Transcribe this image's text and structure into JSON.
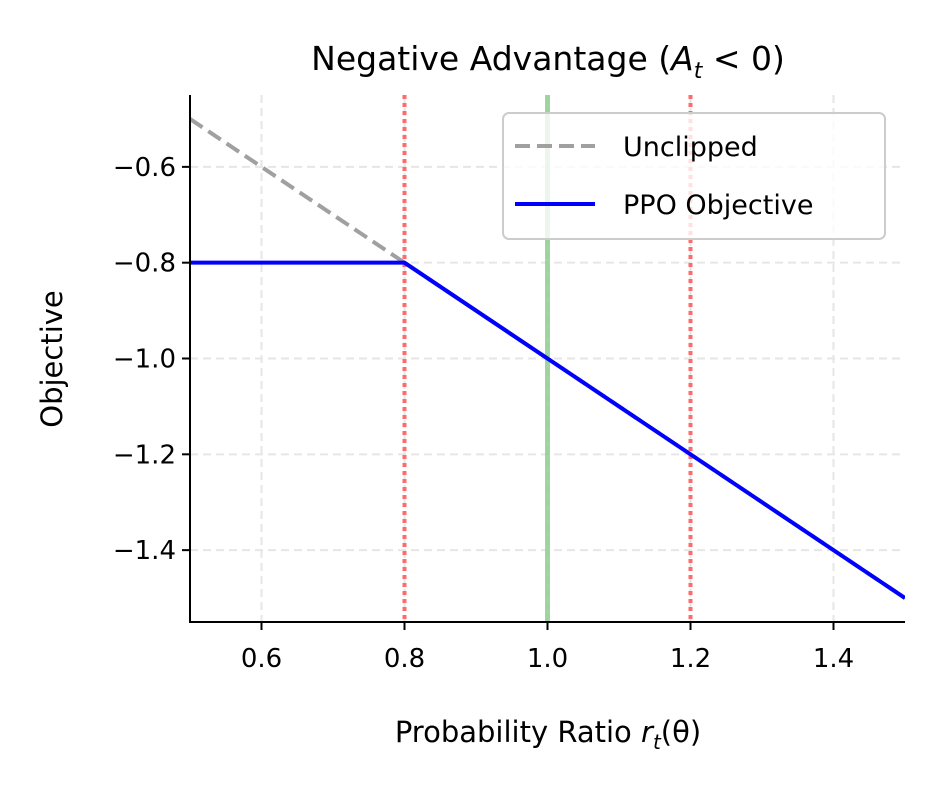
{
  "chart_data": {
    "type": "line",
    "title": {
      "prefix": "Negative Advantage (",
      "var": "A",
      "sub": "t",
      "suffix": " < 0)"
    },
    "xlabel": {
      "prefix": "Probability Ratio ",
      "var": "r",
      "sub": "t",
      "suffix": "(θ)"
    },
    "ylabel": "Objective",
    "xlim": [
      0.5,
      1.5
    ],
    "ylim": [
      -1.55,
      -0.45
    ],
    "xticks": [
      0.6,
      0.8,
      1.0,
      1.2,
      1.4
    ],
    "xtick_labels": [
      "0.6",
      "0.8",
      "1.0",
      "1.2",
      "1.4"
    ],
    "yticks": [
      -0.6,
      -0.8,
      -1.0,
      -1.2,
      -1.4
    ],
    "ytick_labels": [
      "−0.6",
      "−0.8",
      "−1.0",
      "−1.2",
      "−1.4"
    ],
    "grid": true,
    "legend_position": "top-right",
    "series": [
      {
        "name": "Unclipped",
        "color": "#a0a0a0",
        "style": "dashed",
        "x": [
          0.5,
          1.5
        ],
        "y": [
          -0.5,
          -1.5
        ]
      },
      {
        "name": "PPO Objective",
        "color": "#0000ff",
        "style": "solid",
        "x": [
          0.5,
          0.8,
          1.5
        ],
        "y": [
          -0.8,
          -0.8,
          -1.5
        ]
      }
    ],
    "vlines": [
      {
        "x": 0.8,
        "color": "#ff6b6b",
        "style": "dotted"
      },
      {
        "x": 1.2,
        "color": "#ff6b6b",
        "style": "dotted"
      },
      {
        "x": 1.0,
        "color": "#8fd08f",
        "style": "solid"
      }
    ]
  }
}
